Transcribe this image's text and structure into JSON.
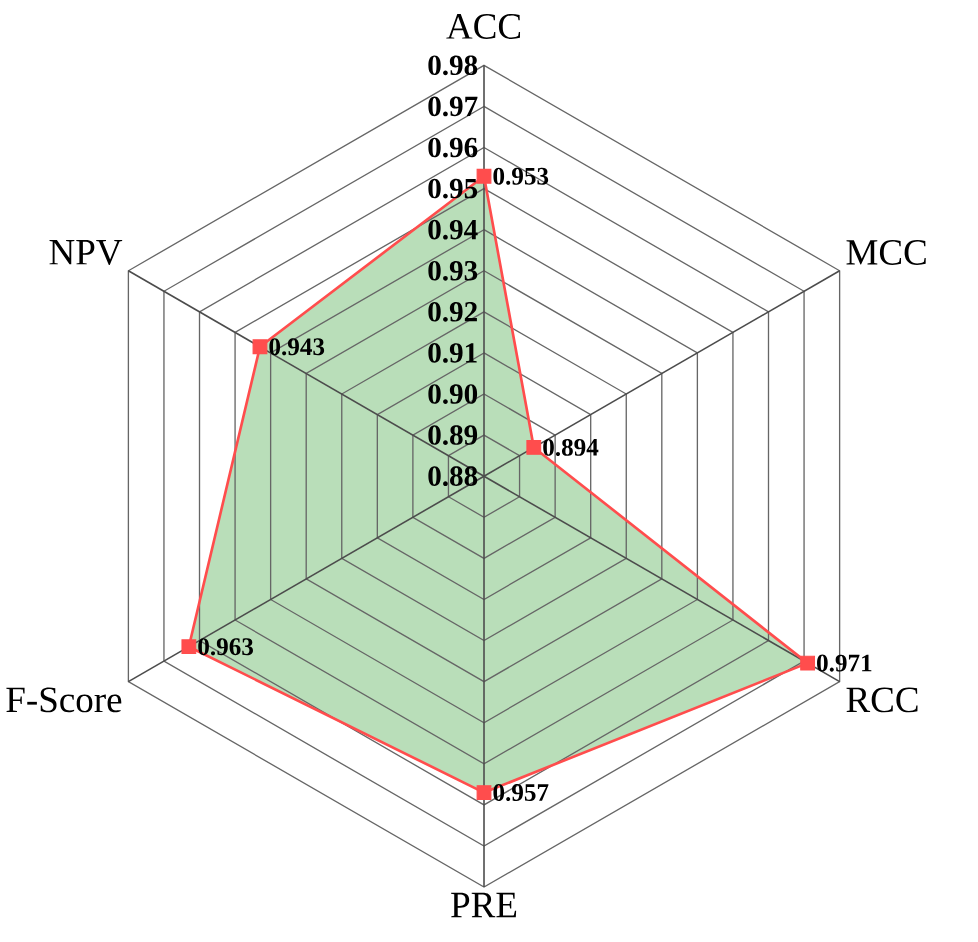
{
  "chart_data": {
    "type": "radar",
    "categories": [
      "ACC",
      "MCC",
      "RCC",
      "PRE",
      "F-Score",
      "NPV"
    ],
    "series": [
      {
        "color": "#ff4d4d",
        "values": [
          0.953,
          0.894,
          0.971,
          0.957,
          0.963,
          0.943
        ]
      }
    ],
    "ylim": [
      0.88,
      0.98
    ],
    "yticks": [
      0.88,
      0.89,
      {
        "value": 0.9,
        "label": "0.90"
      },
      0.91,
      0.92,
      0.93,
      0.94,
      0.95,
      0.96,
      0.97,
      0.98
    ],
    "grid": true,
    "marker": "square",
    "data_labels": true
  }
}
